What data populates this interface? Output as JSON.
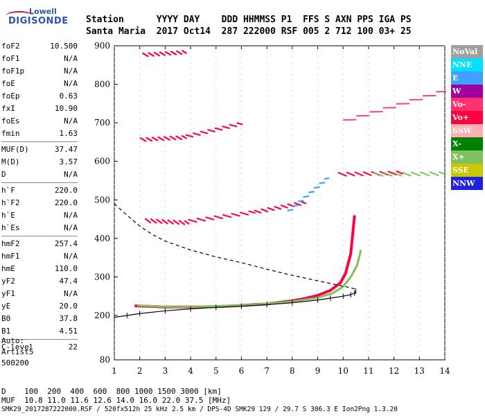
{
  "logo": {
    "line1": "Lowell",
    "line2": "DIGISONDE"
  },
  "header": {
    "row1": "Station      YYYY DAY    DDD HHMMSS P1  FFS S AXN PPS IGA PS",
    "row2": "Santa Maria  2017 Oct14  287 222000 RSF 005 2 712 100 03+ 25"
  },
  "params": {
    "group1": [
      {
        "k": "foF2",
        "v": "10.500"
      },
      {
        "k": "foF1",
        "v": "N/A"
      },
      {
        "k": "foF1p",
        "v": "N/A"
      },
      {
        "k": "foE",
        "v": "N/A"
      },
      {
        "k": "foEp",
        "v": "0.63"
      },
      {
        "k": "fxI",
        "v": "10.90"
      },
      {
        "k": "foEs",
        "v": "N/A"
      },
      {
        "k": "fmin",
        "v": "1.63"
      }
    ],
    "group2": [
      {
        "k": "MUF(D)",
        "v": "37.47"
      },
      {
        "k": "M(D)",
        "v": "3.57"
      },
      {
        "k": "D",
        "v": "N/A"
      }
    ],
    "group3": [
      {
        "k": "h`F",
        "v": "220.0"
      },
      {
        "k": "h`F2",
        "v": "220.0"
      },
      {
        "k": "h`E",
        "v": "N/A"
      },
      {
        "k": "h`Es",
        "v": "N/A"
      }
    ],
    "group4": [
      {
        "k": "hmF2",
        "v": "257.4"
      },
      {
        "k": "hmF1",
        "v": "N/A"
      },
      {
        "k": "hmE",
        "v": "110.0"
      },
      {
        "k": "yF2",
        "v": "47.4"
      },
      {
        "k": "yF1",
        "v": "N/A"
      },
      {
        "k": "yE",
        "v": "20.0"
      },
      {
        "k": "B0",
        "v": "37.8"
      },
      {
        "k": "B1",
        "v": "4.51"
      }
    ],
    "group5": [
      {
        "k": "C-level",
        "v": "22"
      }
    ]
  },
  "auto": {
    "l1": "Auto:",
    "l2": "Artist5",
    "l3": "500200"
  },
  "legend": [
    {
      "label": "NoVal",
      "color": "#a0a0a0"
    },
    {
      "label": "NNE",
      "color": "#00e0ff"
    },
    {
      "label": "E",
      "color": "#3fa0ff"
    },
    {
      "label": "W",
      "color": "#a000a0"
    },
    {
      "label": "Vo-",
      "color": "#ff3070"
    },
    {
      "label": "Vo+",
      "color": "#ff0040"
    },
    {
      "label": "SSW",
      "color": "#ffb0b0"
    },
    {
      "label": "X-",
      "color": "#008000"
    },
    {
      "label": "X+",
      "color": "#80c060"
    },
    {
      "label": "SSE",
      "color": "#c8c800"
    },
    {
      "label": "NNW",
      "color": "#2020e0"
    }
  ],
  "footer": {
    "l1": "D    100  200  400  600  800 1000 1500 3000 [km]",
    "l2": "MUF  10.8 11.0 11.6 12.6 14.0 16.0 22.0 37.5 [MHz]",
    "l3": "SMK29_2017287222000.RSF / 520fx512h 25 kHz 2.5 km / DPS-4D SMK29 129 / 29.7 S 306.3 E Ion2Png 1.3.20"
  },
  "chart_data": {
    "type": "scatter",
    "xlim": [
      1,
      14
    ],
    "ylim": [
      80,
      900
    ],
    "x_ticks": [
      1,
      2,
      3,
      4,
      5,
      6,
      7,
      8,
      9,
      10,
      11,
      12,
      13,
      14
    ],
    "y_ticks": [
      80,
      200,
      300,
      400,
      500,
      600,
      700,
      800,
      900
    ],
    "traces": [
      {
        "name": "O-trace F2",
        "color": "#ff0040",
        "x": [
          1.8,
          2.2,
          3,
          4,
          5,
          6,
          7,
          8,
          8.5,
          9,
          9.5,
          9.9,
          10.1,
          10.3,
          10.45
        ],
        "y": [
          225,
          224,
          222,
          222,
          223,
          226,
          230,
          238,
          244,
          252,
          265,
          285,
          310,
          360,
          460
        ]
      },
      {
        "name": "X-trace F2",
        "color": "#80c060",
        "x": [
          1.9,
          2.5,
          3.5,
          5,
          6.5,
          8,
          9,
          9.6,
          10,
          10.3,
          10.55,
          10.7
        ],
        "y": [
          226,
          224,
          222,
          224,
          228,
          236,
          246,
          258,
          275,
          300,
          330,
          370
        ]
      },
      {
        "name": "Profile",
        "color": "#000000",
        "x": [
          1,
          1.5,
          2,
          3,
          4,
          5,
          6,
          7,
          8,
          9,
          9.5,
          10,
          10.3,
          10.45,
          10.5
        ],
        "y": [
          195,
          200,
          205,
          212,
          217,
          221,
          224,
          228,
          233,
          240,
          245,
          250,
          254,
          258,
          263
        ]
      },
      {
        "name": "Model",
        "color": "#000000",
        "x": [
          1,
          1.5,
          2,
          2.5,
          3,
          4,
          5,
          6,
          7,
          8,
          9,
          9.5,
          10,
          10.3,
          10.5
        ],
        "y": [
          490,
          460,
          432,
          410,
          393,
          370,
          352,
          337,
          320,
          304,
          290,
          283,
          276,
          272,
          268
        ]
      }
    ],
    "scatter_bands": [
      {
        "color": "#ff0040",
        "x": [
          2.2,
          3.9
        ],
        "y": [
          448,
          442
        ]
      },
      {
        "color": "#ff0040",
        "x": [
          3.9,
          6.5
        ],
        "y": [
          446,
          470
        ]
      },
      {
        "color": "#ff0040",
        "x": [
          6.5,
          8.5
        ],
        "y": [
          470,
          495
        ]
      },
      {
        "color": "#ff0040",
        "x": [
          2,
          3.8
        ],
        "y": [
          658,
          664
        ]
      },
      {
        "color": "#ff0040",
        "x": [
          3.8,
          6
        ],
        "y": [
          666,
          700
        ]
      },
      {
        "color": "#ff3070",
        "x": [
          10,
          14
        ],
        "y": [
          705,
          785
        ]
      },
      {
        "color": "#ff0040",
        "x": [
          9.8,
          12.3
        ],
        "y": [
          568,
          572
        ]
      },
      {
        "color": "#80c060",
        "x": [
          11.2,
          14
        ],
        "y": [
          568,
          570
        ]
      },
      {
        "color": "#3fa0ff",
        "x": [
          7.8,
          9.4
        ],
        "y": [
          470,
          560
        ]
      },
      {
        "color": "#ff0040",
        "x": [
          2.1,
          3.8
        ],
        "y": [
          878,
          885
        ]
      }
    ]
  }
}
